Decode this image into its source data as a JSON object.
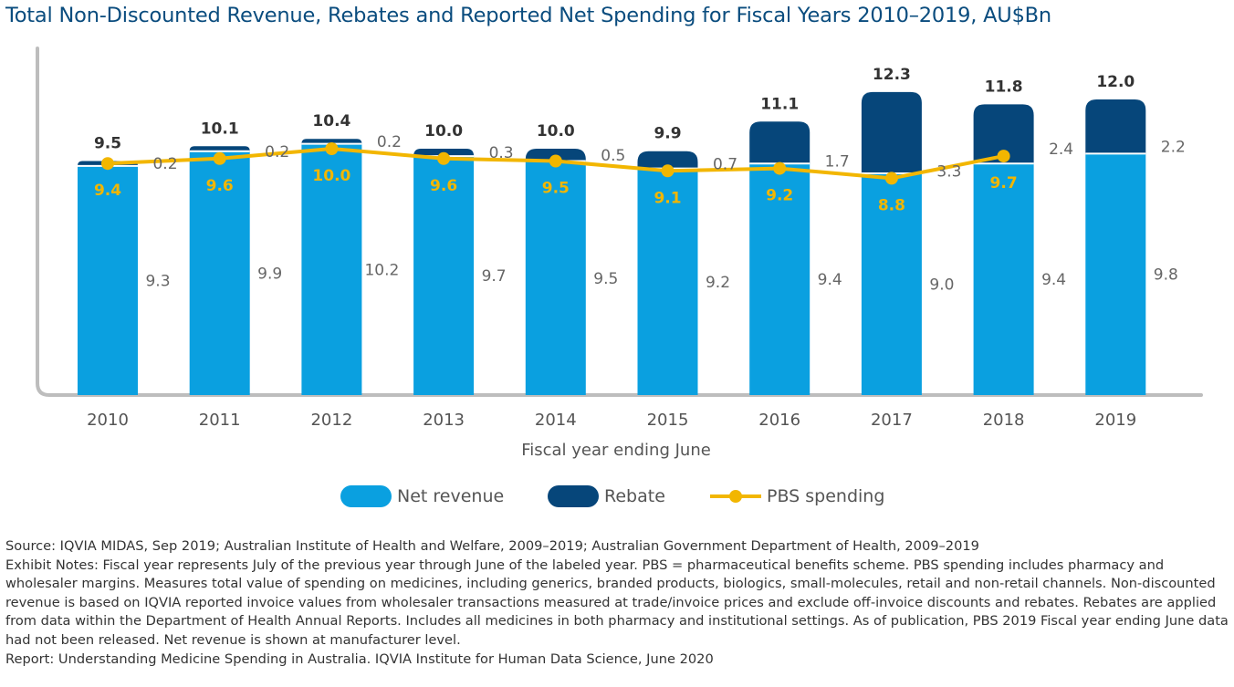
{
  "title": "Total Non-Discounted Revenue, Rebates and Reported Net Spending for Fiscal Years 2010–2019, AU$Bn",
  "colors": {
    "net_revenue": "#0aa0e0",
    "rebate": "#06467a",
    "pbs": "#f2b600",
    "title": "#0a4c7e",
    "axis": "#bdbdbd"
  },
  "chart_data": {
    "type": "bar",
    "stacked": true,
    "categories": [
      "2010",
      "2011",
      "2012",
      "2013",
      "2014",
      "2015",
      "2016",
      "2017",
      "2018",
      "2019"
    ],
    "xlabel": "Fiscal year ending June",
    "ylabel": "",
    "ylim": [
      0,
      13.5
    ],
    "grid": false,
    "legend_position": "bottom",
    "series": [
      {
        "name": "Net revenue",
        "type": "bar",
        "values": [
          9.3,
          9.9,
          10.2,
          9.7,
          9.5,
          9.2,
          9.4,
          9.0,
          9.4,
          9.8
        ]
      },
      {
        "name": "Rebate",
        "type": "bar",
        "values": [
          0.2,
          0.2,
          0.2,
          0.3,
          0.5,
          0.7,
          1.7,
          3.3,
          2.4,
          2.2
        ]
      },
      {
        "name": "PBS spending",
        "type": "line",
        "values": [
          9.4,
          9.6,
          10.0,
          9.6,
          9.5,
          9.1,
          9.2,
          8.8,
          9.7,
          null
        ]
      }
    ],
    "totals": [
      9.5,
      10.1,
      10.4,
      10.0,
      10.0,
      9.9,
      11.1,
      12.3,
      11.8,
      12.0
    ],
    "net_labels": [
      "9.3",
      "9.9",
      "10.2",
      "9.7",
      "9.5",
      "9.2",
      "9.4",
      "9.0",
      "9.4",
      "9.8"
    ],
    "rebate_labels": [
      "0.2",
      "0.2",
      "0.2",
      "0.3",
      "0.5",
      "0.7",
      "1.7",
      "3.3",
      "2.4",
      "2.2"
    ],
    "total_labels": [
      "9.5",
      "10.1",
      "10.4",
      "10.0",
      "10.0",
      "9.9",
      "11.1",
      "12.3",
      "11.8",
      "12.0"
    ],
    "pbs_labels": [
      "9.4",
      "9.6",
      "10.0",
      "9.6",
      "9.5",
      "9.1",
      "9.2",
      "8.8",
      "9.7",
      ""
    ]
  },
  "legend": {
    "net_revenue": "Net revenue",
    "rebate": "Rebate",
    "pbs": "PBS spending"
  },
  "notes": {
    "source": "Source: IQVIA MIDAS, Sep 2019; Australian Institute of Health and Welfare, 2009–2019; Australian Government Department of Health, 2009–2019",
    "exhibit_notes": "Exhibit Notes: Fiscal year represents July of the previous year through June of the labeled year. PBS = pharmaceutical benefits scheme. PBS spending includes pharmacy and wholesaler margins. Measures total value of spending on medicines, including generics, branded products, biologics, small-molecules, retail and non-retail channels. Non-discounted revenue is based on IQVIA reported invoice values from wholesaler transactions measured at trade/invoice prices and exclude off-invoice discounts and rebates. Rebates are applied from data within the Department of Health Annual Reports. Includes all medicines in both pharmacy and institutional settings. As of publication, PBS 2019 Fiscal year ending June data had not been released. Net revenue is shown at manufacturer level.",
    "report": "Report: Understanding Medicine Spending in Australia. IQVIA Institute for Human Data Science, June 2020"
  }
}
